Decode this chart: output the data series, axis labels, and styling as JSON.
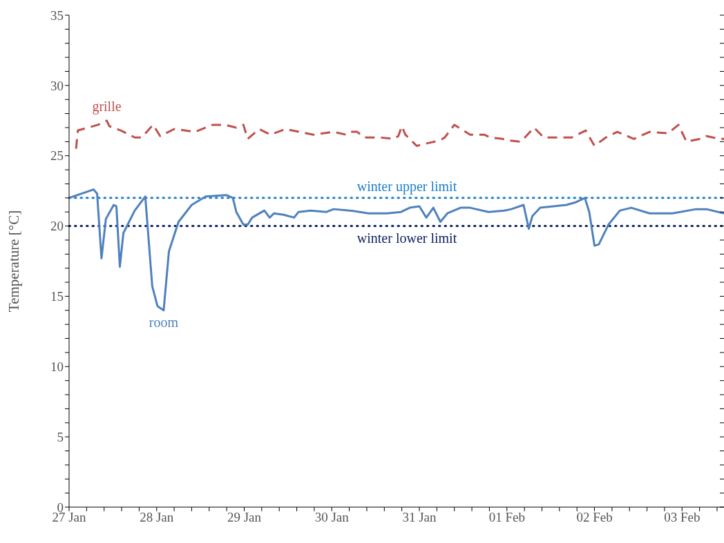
{
  "chart_data": {
    "type": "line",
    "ylabel": "Temperature [°C]",
    "ylim": [
      0,
      35
    ],
    "yticks": [
      0,
      {
        "value": 1,
        "label": null
      },
      {
        "value": 2,
        "label": null
      },
      {
        "value": 3,
        "label": null
      },
      {
        "value": 4,
        "label": null
      },
      5,
      {
        "value": 6,
        "label": null
      },
      {
        "value": 7,
        "label": null
      },
      {
        "value": 8,
        "label": null
      },
      {
        "value": 9,
        "label": null
      },
      10,
      {
        "value": 11,
        "label": null
      },
      {
        "value": 12,
        "label": null
      },
      {
        "value": 13,
        "label": null
      },
      {
        "value": 14,
        "label": null
      },
      15,
      {
        "value": 16,
        "label": null
      },
      {
        "value": 17,
        "label": null
      },
      {
        "value": 18,
        "label": null
      },
      {
        "value": 19,
        "label": null
      },
      20,
      {
        "value": 21,
        "label": null
      },
      {
        "value": 22,
        "label": null
      },
      {
        "value": 23,
        "label": null
      },
      {
        "value": 24,
        "label": null
      },
      25,
      {
        "value": 26,
        "label": null
      },
      {
        "value": 27,
        "label": null
      },
      {
        "value": 28,
        "label": null
      },
      {
        "value": 29,
        "label": null
      },
      30,
      {
        "value": 31,
        "label": null
      },
      {
        "value": 32,
        "label": null
      },
      {
        "value": 33,
        "label": null
      },
      {
        "value": 34,
        "label": null
      },
      35
    ],
    "xlim": [
      "--01-27",
      "--02-03T11:30"
    ],
    "xticks": [
      {
        "value": "--01-27",
        "label": "27 Jan"
      },
      {
        "value": "--01-27T04:48",
        "label": null
      },
      {
        "value": "--01-27T09:36",
        "label": null
      },
      {
        "value": "--01-27T14:24",
        "label": null
      },
      {
        "value": "--01-27T19:12",
        "label": null
      },
      {
        "value": "--01-28",
        "label": "28 Jan"
      },
      {
        "value": "--01-28T04:48",
        "label": null
      },
      {
        "value": "--01-28T09:36",
        "label": null
      },
      {
        "value": "--01-28T14:24",
        "label": null
      },
      {
        "value": "--01-28T19:12",
        "label": null
      },
      {
        "value": "--01-29",
        "label": "29 Jan"
      },
      {
        "value": "--01-29T04:48",
        "label": null
      },
      {
        "value": "--01-29T09:36",
        "label": null
      },
      {
        "value": "--01-29T14:24",
        "label": null
      },
      {
        "value": "--01-29T19:12",
        "label": null
      },
      {
        "value": "--01-30",
        "label": "30 Jan"
      },
      {
        "value": "--01-30T04:48",
        "label": null
      },
      {
        "value": "--01-30T09:36",
        "label": null
      },
      {
        "value": "--01-30T14:24",
        "label": null
      },
      {
        "value": "--01-30T19:12",
        "label": null
      },
      {
        "value": "--01-31",
        "label": "31 Jan"
      },
      {
        "value": "--01-31T04:48",
        "label": null
      },
      {
        "value": "--01-31T09:36",
        "label": null
      },
      {
        "value": "--01-31T14:24",
        "label": null
      },
      {
        "value": "--01-31T19:12",
        "label": null
      },
      {
        "value": "--02-01",
        "label": "01 Feb"
      },
      {
        "value": "--02-01T04:48",
        "label": null
      },
      {
        "value": "--02-01T09:36",
        "label": null
      },
      {
        "value": "--02-01T14:24",
        "label": null
      },
      {
        "value": "--02-01T19:12",
        "label": null
      },
      {
        "value": "--02-02",
        "label": "02 Feb"
      },
      {
        "value": "--02-02T04:48",
        "label": null
      },
      {
        "value": "--02-02T09:36",
        "label": null
      },
      {
        "value": "--02-02T14:24",
        "label": null
      },
      {
        "value": "--02-02T19:12",
        "label": null
      },
      {
        "value": "--02-03",
        "label": "03 Feb"
      },
      {
        "value": "--02-03T04:48",
        "label": null
      },
      {
        "value": "--02-03T09:36",
        "label": null
      }
    ],
    "grid": false,
    "series": [
      {
        "name": "grille",
        "color": "#c0504d",
        "line_style": "dashed",
        "x": [
          "--01-27T01:55",
          "--01-27T02:24",
          "--01-27T03:50",
          "--01-27T07:55",
          "--01-27T10:19",
          "--01-27T11:02",
          "--01-27T14:10",
          "--01-27T18:00",
          "--01-27T19:55",
          "--01-27T23:02",
          "--01-28T00:58",
          "--01-28T04:48",
          "--01-28T10:34",
          "--01-28T15:22",
          "--01-28T18:43",
          "--01-28T21:50",
          "--01-28T23:46",
          "--01-29T00:58",
          "--01-29T04:05",
          "--01-29T07:12",
          "--01-29T11:17",
          "--01-29T15:07",
          "--01-29T18:58",
          "--01-30T00:29",
          "--01-30T03:50",
          "--01-30T05:02",
          "--01-30T06:58",
          "--01-30T08:53",
          "--01-30T13:12",
          "--01-30T17:02",
          "--01-30T18:14",
          "--01-30T19:12",
          "--01-30T20:10",
          "--01-30T23:17",
          "--01-31T02:24",
          "--01-31T05:46",
          "--01-31T06:58",
          "--01-31T09:36",
          "--01-31T13:55",
          "--01-31T17:46",
          "--01-31T19:26",
          "--01-31T22:48",
          "--02-01T00:00",
          "--02-01T03:50",
          "--02-01T07:26",
          "--02-01T10:05",
          "--02-01T17:46",
          "--02-01T21:36",
          "--02-02T00:00",
          "--02-02T03:07",
          "--02-02T06:14",
          "--02-02T10:48",
          "--02-02T15:07",
          "--02-02T20:10",
          "--02-02T23:02",
          "--02-03T01:12",
          "--02-03T05:02",
          "--02-03T06:43",
          "--02-03T10:05",
          "--02-03T11:30"
        ],
        "values": [
          25.5,
          26.8,
          26.9,
          27.2,
          27.5,
          27.1,
          26.8,
          26.3,
          26.3,
          27.2,
          26.4,
          26.9,
          26.7,
          27.2,
          27.2,
          27.0,
          27.2,
          26.2,
          26.9,
          26.5,
          26.9,
          26.7,
          26.5,
          26.7,
          26.5,
          26.7,
          26.7,
          26.3,
          26.3,
          26.2,
          26.4,
          27.1,
          26.5,
          25.7,
          25.9,
          26.1,
          26.3,
          27.2,
          26.5,
          26.5,
          26.3,
          26.2,
          26.1,
          26.0,
          27.0,
          26.3,
          26.3,
          26.8,
          25.7,
          26.3,
          26.7,
          26.2,
          26.7,
          26.6,
          27.2,
          26.0,
          26.2,
          26.4,
          26.2,
          26.2
        ]
      },
      {
        "name": "room",
        "color": "#4f81bd",
        "line_style": "solid",
        "x": [
          "--01-27T00:00",
          "--01-27T06:43",
          "--01-27T07:41",
          "--01-27T08:53",
          "--01-27T10:05",
          "--01-27T12:14",
          "--01-27T12:58",
          "--01-27T13:55",
          "--01-27T14:53",
          "--01-27T18:00",
          "--01-27T20:53",
          "--01-27T22:48",
          "--01-28T00:14",
          "--01-28T01:55",
          "--01-28T03:22",
          "--01-28T06:00",
          "--01-28T09:36",
          "--01-28T13:26",
          "--01-28T19:12",
          "--01-28T20:53",
          "--01-28T21:50",
          "--01-28T23:46",
          "--01-29T00:58",
          "--01-29T02:10",
          "--01-29T05:31",
          "--01-29T06:58",
          "--01-29T08:10",
          "--01-29T10:48",
          "--01-29T13:41",
          "--01-29T14:53",
          "--01-29T18:14",
          "--01-29T22:34",
          "--01-30T00:29",
          "--01-30T05:02",
          "--01-30T10:05",
          "--01-30T15:07",
          "--01-30T18:58",
          "--01-30T21:22",
          "--01-31T00:00",
          "--01-31T01:55",
          "--01-31T03:50",
          "--01-31T05:46",
          "--01-31T07:41",
          "--01-31T11:17",
          "--01-31T13:55",
          "--01-31T18:58",
          "--01-31T23:17",
          "--02-01T01:12",
          "--02-01T04:34",
          "--02-01T06:00",
          "--02-01T06:58",
          "--02-01T09:07",
          "--02-01T16:19",
          "--02-01T18:58",
          "--02-01T21:22",
          "--02-01T22:34",
          "--02-02T00:00",
          "--02-02T01:12",
          "--02-02T03:50",
          "--02-02T06:58",
          "--02-02T10:05",
          "--02-02T15:07",
          "--02-02T21:22",
          "--02-03T03:50",
          "--02-03T06:43",
          "--02-03T11:30"
        ],
        "values": [
          22.0,
          22.6,
          22.3,
          17.7,
          20.5,
          21.5,
          21.4,
          17.1,
          19.5,
          21.1,
          22.1,
          15.7,
          14.3,
          14.0,
          18.2,
          20.3,
          21.5,
          22.1,
          22.2,
          22.0,
          21.0,
          20.1,
          20.1,
          20.6,
          21.1,
          20.6,
          20.9,
          20.8,
          20.6,
          21.0,
          21.1,
          21.0,
          21.2,
          21.1,
          20.9,
          20.9,
          21.0,
          21.3,
          21.4,
          20.6,
          21.3,
          20.3,
          20.9,
          21.3,
          21.3,
          21.0,
          21.1,
          21.2,
          21.5,
          19.8,
          20.7,
          21.3,
          21.5,
          21.7,
          22.0,
          21.0,
          18.6,
          18.7,
          20.1,
          21.1,
          21.3,
          20.9,
          20.9,
          21.2,
          21.2,
          20.9
        ]
      }
    ],
    "ref_lines": [
      {
        "axis": "y",
        "value": 22,
        "label": "winter upper limit",
        "color": "#1a7fcc",
        "line_style": "dotted"
      },
      {
        "axis": "y",
        "value": 20,
        "label": "winter lower limit",
        "color": "#0d2160",
        "line_style": "dotted"
      }
    ]
  }
}
